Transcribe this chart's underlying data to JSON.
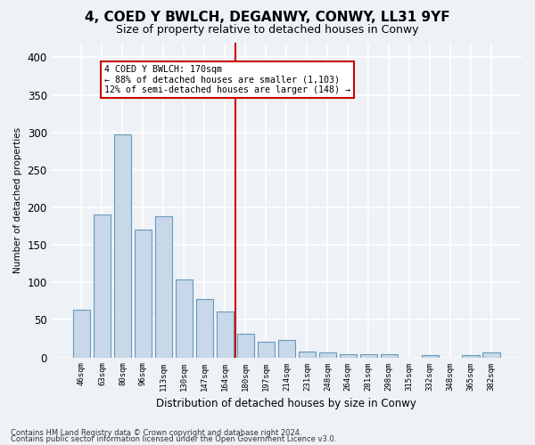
{
  "title": "4, COED Y BWLCH, DEGANWY, CONWY, LL31 9YF",
  "subtitle": "Size of property relative to detached houses in Conwy",
  "xlabel": "Distribution of detached houses by size in Conwy",
  "ylabel": "Number of detached properties",
  "categories": [
    "46sqm",
    "63sqm",
    "80sqm",
    "96sqm",
    "113sqm",
    "130sqm",
    "147sqm",
    "164sqm",
    "180sqm",
    "197sqm",
    "214sqm",
    "231sqm",
    "248sqm",
    "264sqm",
    "281sqm",
    "298sqm",
    "315sqm",
    "332sqm",
    "348sqm",
    "365sqm",
    "382sqm"
  ],
  "values": [
    63,
    190,
    297,
    170,
    188,
    104,
    78,
    61,
    32,
    21,
    23,
    8,
    6,
    4,
    4,
    4,
    0,
    3,
    0,
    3,
    6
  ],
  "bar_color": "#c8d8e8",
  "bar_edge_color": "#6699bb",
  "property_line_x": 7.5,
  "annotation_line1": "4 COED Y BWLCH: 170sqm",
  "annotation_line2": "← 88% of detached houses are smaller (1,103)",
  "annotation_line3": "12% of semi-detached houses are larger (148) →",
  "annotation_box_color": "#ffffff",
  "annotation_box_edge": "#cc0000",
  "vline_color": "#cc0000",
  "ylim": [
    0,
    420
  ],
  "yticks": [
    0,
    50,
    100,
    150,
    200,
    250,
    300,
    350,
    400
  ],
  "footer1": "Contains HM Land Registry data © Crown copyright and database right 2024.",
  "footer2": "Contains public sector information licensed under the Open Government Licence v3.0.",
  "background_color": "#eef2f7",
  "grid_color": "#ffffff",
  "title_fontsize": 11,
  "subtitle_fontsize": 9,
  "bar_width": 0.85
}
